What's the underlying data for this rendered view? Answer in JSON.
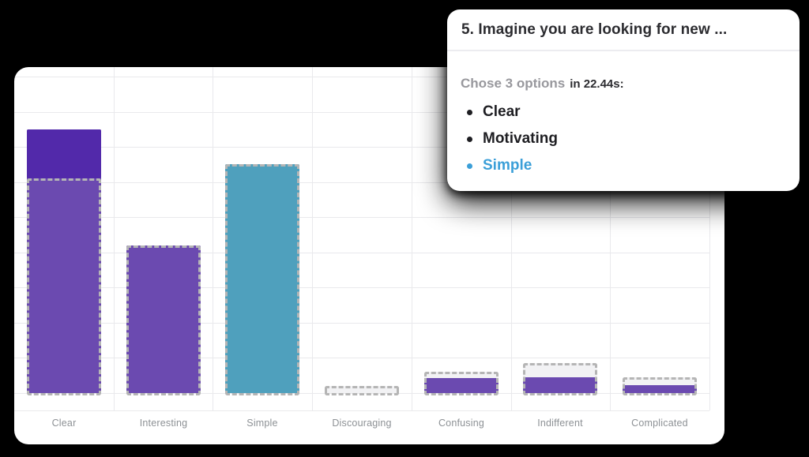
{
  "tooltip": {
    "title": "5. Imagine you are looking for new ...",
    "chose_label": "Chose 3 options",
    "time_label": "in 22.44s:",
    "options": [
      "Clear",
      "Motivating",
      "Simple"
    ],
    "highlight_option_index": 2,
    "highlight_color": "#3b9fd8"
  },
  "chart_data": {
    "type": "bar",
    "title": "",
    "xlabel": "",
    "ylabel": "",
    "categories": [
      "Clear",
      "Interesting",
      "Simple",
      "Discouraging",
      "Confusing",
      "Indifferent",
      "Complicated"
    ],
    "series": [
      {
        "name": "responses (solid fill)",
        "values": [
          7.5,
          4.2,
          6.5,
          0,
          0.43,
          0.45,
          0.22
        ]
      },
      {
        "name": "reference (dashed outline)",
        "values": [
          6.1,
          4.2,
          6.5,
          0.2,
          0.61,
          0.85,
          0.45
        ]
      }
    ],
    "bar_color_names": [
      "purple",
      "purple",
      "teal",
      "purple",
      "purple",
      "purple",
      "purple"
    ],
    "palette": {
      "purple": {
        "solid": "#5229aa",
        "faded": "#6b4ab0"
      },
      "teal": {
        "solid": "#3a92b4",
        "faded": "#4fa0bd"
      },
      "ghost_fill": "#f2f2f4",
      "dash_border": "#b5b5b5",
      "gridline": "#e9e9ec",
      "axis_label": "#8d9195"
    },
    "ylim": [
      0,
      9.4
    ],
    "grid": true,
    "y_tick_labels": [],
    "legend": "none"
  }
}
